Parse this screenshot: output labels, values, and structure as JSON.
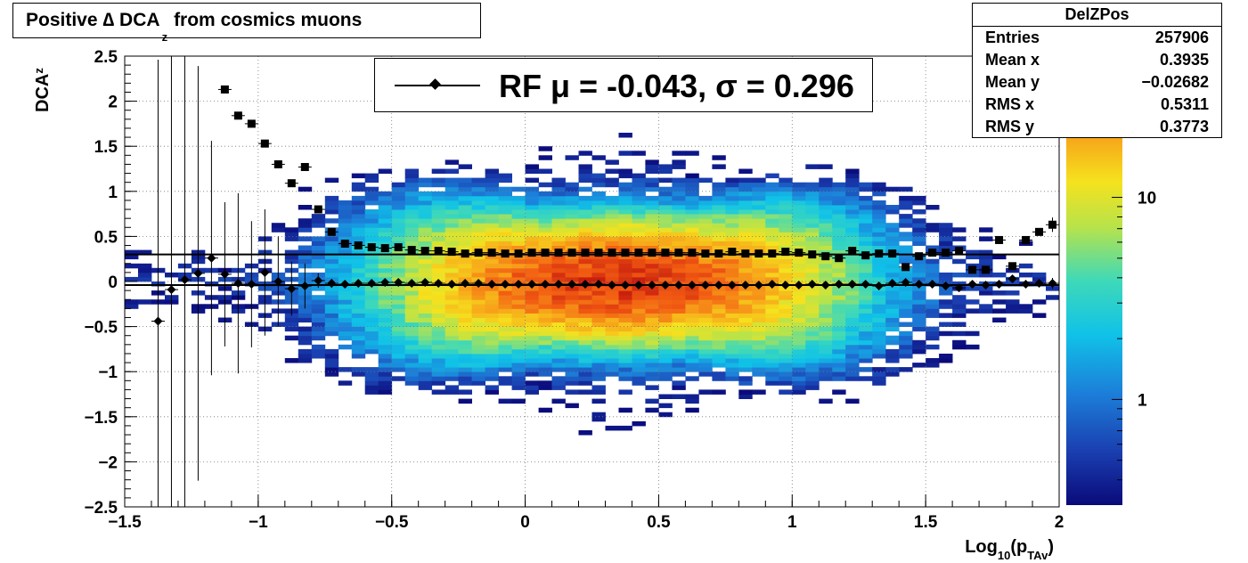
{
  "title": {
    "pre": "Positive ∆ DCA",
    "sub": "z",
    "post": "from cosmics muons"
  },
  "stats_box": {
    "name": "DelZPos",
    "rows": [
      {
        "key": "Entries",
        "value": "257906"
      },
      {
        "key": "Mean x",
        "value": "0.3935"
      },
      {
        "key": "Mean y",
        "value": "−0.02682"
      },
      {
        "key": "RMS x",
        "value": "0.5311"
      },
      {
        "key": "RMS y",
        "value": "0.3773"
      }
    ]
  },
  "legend": {
    "label": "RF μ = -0.043, σ =   0.296"
  },
  "colors": {
    "mean_markers": "#000000",
    "sigma_markers": "#000000"
  },
  "chart_data": {
    "type": "heatmap",
    "xlabel": {
      "pre": "Log",
      "sub1": "10",
      "mid": "(p",
      "sub2": "TAv",
      "post": ")"
    },
    "ylabel": {
      "pre": "DCA",
      "sub": "z"
    },
    "xlim": [
      -1.5,
      2
    ],
    "ylim": [
      -2.5,
      2.5
    ],
    "x_ticks": [
      {
        "v": -1.5,
        "l": "−1.5"
      },
      {
        "v": -1,
        "l": "−1"
      },
      {
        "v": -0.5,
        "l": "−0.5"
      },
      {
        "v": 0,
        "l": "0"
      },
      {
        "v": 0.5,
        "l": "0.5"
      },
      {
        "v": 1,
        "l": "1"
      },
      {
        "v": 1.5,
        "l": "1.5"
      },
      {
        "v": 2,
        "l": "2"
      }
    ],
    "y_ticks": [
      {
        "v": -2.5,
        "l": "−2.5"
      },
      {
        "v": -2,
        "l": "−2"
      },
      {
        "v": -1.5,
        "l": "−1.5"
      },
      {
        "v": -1,
        "l": "−1"
      },
      {
        "v": -0.5,
        "l": "−0.5"
      },
      {
        "v": 0,
        "l": "0"
      },
      {
        "v": 0.5,
        "l": "0.5"
      },
      {
        "v": 1,
        "l": "1"
      },
      {
        "v": 1.5,
        "l": "1.5"
      },
      {
        "v": 2,
        "l": "2"
      },
      {
        "v": 2.5,
        "l": "2.5"
      }
    ],
    "grid": true,
    "colorbar": {
      "scale": "log",
      "range": [
        0.3,
        50
      ],
      "tick_labels": [
        {
          "v": 1,
          "l": "1"
        },
        {
          "v": 10,
          "l": "10"
        }
      ]
    },
    "fit_lines": {
      "mean": -0.04,
      "sigma": 0.3
    },
    "series": [
      {
        "kind": "mean",
        "marker": "diamond",
        "points": [
          {
            "x": -1.375,
            "y": -0.44,
            "e": 2.9
          },
          {
            "x": -1.325,
            "y": -0.09,
            "e": 2.8
          },
          {
            "x": -1.275,
            "y": 0.02,
            "e": 2.6
          },
          {
            "x": -1.225,
            "y": 0.09,
            "e": 2.3
          },
          {
            "x": -1.175,
            "y": 0.26,
            "e": 1.3
          },
          {
            "x": -1.125,
            "y": 0.08,
            "e": 0.8
          },
          {
            "x": -1.075,
            "y": -0.02,
            "e": 1.0
          },
          {
            "x": -1.025,
            "y": -0.03,
            "e": 0.7
          },
          {
            "x": -0.975,
            "y": 0.1,
            "e": 0.7
          },
          {
            "x": -0.925,
            "y": 0.0,
            "e": 0.5
          },
          {
            "x": -0.875,
            "y": -0.08,
            "e": 0.3
          },
          {
            "x": -0.825,
            "y": -0.05,
            "e": 0.25
          },
          {
            "x": -0.775,
            "y": 0.01,
            "e": 0.08
          },
          {
            "x": -0.725,
            "y": -0.02,
            "e": 0.05
          },
          {
            "x": -0.675,
            "y": -0.03,
            "e": 0.03
          },
          {
            "x": -0.625,
            "y": -0.02,
            "e": 0.02
          },
          {
            "x": -0.575,
            "y": -0.02,
            "e": 0.0
          },
          {
            "x": -0.525,
            "y": -0.01,
            "e": 0.0
          },
          {
            "x": -0.475,
            "y": -0.01,
            "e": 0.0
          },
          {
            "x": -0.425,
            "y": -0.02,
            "e": 0.0
          },
          {
            "x": -0.375,
            "y": -0.01,
            "e": 0.0
          },
          {
            "x": -0.325,
            "y": -0.02,
            "e": 0.0
          },
          {
            "x": -0.275,
            "y": -0.03,
            "e": 0.0
          },
          {
            "x": -0.225,
            "y": -0.02,
            "e": 0.0
          },
          {
            "x": -0.175,
            "y": -0.02,
            "e": 0.0
          },
          {
            "x": -0.125,
            "y": -0.03,
            "e": 0.0
          },
          {
            "x": -0.075,
            "y": -0.03,
            "e": 0.0
          },
          {
            "x": -0.025,
            "y": -0.03,
            "e": 0.0
          },
          {
            "x": 0.025,
            "y": -0.03,
            "e": 0.0
          },
          {
            "x": 0.075,
            "y": -0.03,
            "e": 0.0
          },
          {
            "x": 0.125,
            "y": -0.03,
            "e": 0.0
          },
          {
            "x": 0.175,
            "y": -0.03,
            "e": 0.0
          },
          {
            "x": 0.225,
            "y": -0.03,
            "e": 0.0
          },
          {
            "x": 0.275,
            "y": -0.03,
            "e": 0.0
          },
          {
            "x": 0.325,
            "y": -0.04,
            "e": 0.0
          },
          {
            "x": 0.375,
            "y": -0.04,
            "e": 0.0
          },
          {
            "x": 0.425,
            "y": -0.04,
            "e": 0.0
          },
          {
            "x": 0.475,
            "y": -0.04,
            "e": 0.0
          },
          {
            "x": 0.525,
            "y": -0.04,
            "e": 0.0
          },
          {
            "x": 0.575,
            "y": -0.04,
            "e": 0.0
          },
          {
            "x": 0.625,
            "y": -0.04,
            "e": 0.0
          },
          {
            "x": 0.675,
            "y": -0.04,
            "e": 0.0
          },
          {
            "x": 0.725,
            "y": -0.04,
            "e": 0.0
          },
          {
            "x": 0.775,
            "y": -0.04,
            "e": 0.0
          },
          {
            "x": 0.825,
            "y": -0.04,
            "e": 0.0
          },
          {
            "x": 0.875,
            "y": -0.04,
            "e": 0.0
          },
          {
            "x": 0.925,
            "y": -0.03,
            "e": 0.0
          },
          {
            "x": 0.975,
            "y": -0.04,
            "e": 0.0
          },
          {
            "x": 1.025,
            "y": -0.04,
            "e": 0.0
          },
          {
            "x": 1.075,
            "y": -0.03,
            "e": 0.02
          },
          {
            "x": 1.125,
            "y": -0.04,
            "e": 0.02
          },
          {
            "x": 1.175,
            "y": -0.03,
            "e": 0.02
          },
          {
            "x": 1.225,
            "y": -0.03,
            "e": 0.02
          },
          {
            "x": 1.275,
            "y": -0.03,
            "e": 0.02
          },
          {
            "x": 1.325,
            "y": -0.05,
            "e": 0.02
          },
          {
            "x": 1.375,
            "y": -0.02,
            "e": 0.02
          },
          {
            "x": 1.425,
            "y": -0.01,
            "e": 0.03
          },
          {
            "x": 1.475,
            "y": -0.03,
            "e": 0.03
          },
          {
            "x": 1.525,
            "y": -0.03,
            "e": 0.03
          },
          {
            "x": 1.575,
            "y": -0.05,
            "e": 0.03
          },
          {
            "x": 1.625,
            "y": -0.07,
            "e": 0.03
          },
          {
            "x": 1.675,
            "y": -0.03,
            "e": 0.03
          },
          {
            "x": 1.725,
            "y": -0.04,
            "e": 0.03
          },
          {
            "x": 1.775,
            "y": -0.03,
            "e": 0.03
          },
          {
            "x": 1.825,
            "y": 0.03,
            "e": 0.03
          },
          {
            "x": 1.875,
            "y": -0.03,
            "e": 0.03
          },
          {
            "x": 1.925,
            "y": -0.02,
            "e": 0.03
          },
          {
            "x": 1.975,
            "y": -0.02,
            "e": 0.06
          }
        ]
      },
      {
        "kind": "sigma",
        "marker": "square",
        "points": [
          {
            "x": -1.125,
            "y": 2.13,
            "e": 0.0
          },
          {
            "x": -1.075,
            "y": 1.84,
            "e": 0.0
          },
          {
            "x": -1.025,
            "y": 1.75,
            "e": 0.0
          },
          {
            "x": -0.975,
            "y": 1.53,
            "e": 0.0
          },
          {
            "x": -0.925,
            "y": 1.3,
            "e": 0.0
          },
          {
            "x": -0.875,
            "y": 1.09,
            "e": 0.0
          },
          {
            "x": -0.825,
            "y": 1.27,
            "e": 0.0
          },
          {
            "x": -0.775,
            "y": 0.8,
            "e": 0.0
          },
          {
            "x": -0.725,
            "y": 0.55,
            "e": 0.0
          },
          {
            "x": -0.675,
            "y": 0.42,
            "e": 0.0
          },
          {
            "x": -0.625,
            "y": 0.4,
            "e": 0.0
          },
          {
            "x": -0.575,
            "y": 0.38,
            "e": 0.0
          },
          {
            "x": -0.525,
            "y": 0.37,
            "e": 0.0
          },
          {
            "x": -0.475,
            "y": 0.38,
            "e": 0.0
          },
          {
            "x": -0.425,
            "y": 0.35,
            "e": 0.0
          },
          {
            "x": -0.375,
            "y": 0.34,
            "e": 0.0
          },
          {
            "x": -0.325,
            "y": 0.34,
            "e": 0.0
          },
          {
            "x": -0.275,
            "y": 0.33,
            "e": 0.0
          },
          {
            "x": -0.225,
            "y": 0.31,
            "e": 0.0
          },
          {
            "x": -0.175,
            "y": 0.32,
            "e": 0.0
          },
          {
            "x": -0.125,
            "y": 0.32,
            "e": 0.0
          },
          {
            "x": -0.075,
            "y": 0.31,
            "e": 0.0
          },
          {
            "x": -0.025,
            "y": 0.31,
            "e": 0.0
          },
          {
            "x": 0.025,
            "y": 0.32,
            "e": 0.0
          },
          {
            "x": 0.075,
            "y": 0.32,
            "e": 0.0
          },
          {
            "x": 0.125,
            "y": 0.32,
            "e": 0.0
          },
          {
            "x": 0.175,
            "y": 0.32,
            "e": 0.0
          },
          {
            "x": 0.225,
            "y": 0.32,
            "e": 0.0
          },
          {
            "x": 0.275,
            "y": 0.32,
            "e": 0.0
          },
          {
            "x": 0.325,
            "y": 0.32,
            "e": 0.0
          },
          {
            "x": 0.375,
            "y": 0.32,
            "e": 0.0
          },
          {
            "x": 0.425,
            "y": 0.32,
            "e": 0.0
          },
          {
            "x": 0.475,
            "y": 0.32,
            "e": 0.0
          },
          {
            "x": 0.525,
            "y": 0.32,
            "e": 0.0
          },
          {
            "x": 0.575,
            "y": 0.32,
            "e": 0.0
          },
          {
            "x": 0.625,
            "y": 0.32,
            "e": 0.0
          },
          {
            "x": 0.675,
            "y": 0.31,
            "e": 0.0
          },
          {
            "x": 0.725,
            "y": 0.31,
            "e": 0.0
          },
          {
            "x": 0.775,
            "y": 0.33,
            "e": 0.0
          },
          {
            "x": 0.825,
            "y": 0.31,
            "e": 0.0
          },
          {
            "x": 0.875,
            "y": 0.31,
            "e": 0.0
          },
          {
            "x": 0.925,
            "y": 0.31,
            "e": 0.0
          },
          {
            "x": 0.975,
            "y": 0.33,
            "e": 0.0
          },
          {
            "x": 1.025,
            "y": 0.32,
            "e": 0.0
          },
          {
            "x": 1.075,
            "y": 0.3,
            "e": 0.0
          },
          {
            "x": 1.125,
            "y": 0.28,
            "e": 0.0
          },
          {
            "x": 1.175,
            "y": 0.26,
            "e": 0.0
          },
          {
            "x": 1.225,
            "y": 0.34,
            "e": 0.0
          },
          {
            "x": 1.275,
            "y": 0.29,
            "e": 0.0
          },
          {
            "x": 1.325,
            "y": 0.31,
            "e": 0.0
          },
          {
            "x": 1.375,
            "y": 0.31,
            "e": 0.0
          },
          {
            "x": 1.425,
            "y": 0.16,
            "e": 0.0
          },
          {
            "x": 1.475,
            "y": 0.28,
            "e": 0.0
          },
          {
            "x": 1.525,
            "y": 0.32,
            "e": 0.0
          },
          {
            "x": 1.575,
            "y": 0.32,
            "e": 0.0
          },
          {
            "x": 1.625,
            "y": 0.34,
            "e": 0.0
          },
          {
            "x": 1.675,
            "y": 0.13,
            "e": 0.0
          },
          {
            "x": 1.725,
            "y": 0.13,
            "e": 0.0
          },
          {
            "x": 1.775,
            "y": 0.46,
            "e": 0.0
          },
          {
            "x": 1.825,
            "y": 0.17,
            "e": 0.0
          },
          {
            "x": 1.875,
            "y": 0.46,
            "e": 0.0
          },
          {
            "x": 1.925,
            "y": 0.55,
            "e": 0.0
          },
          {
            "x": 1.975,
            "y": 0.63,
            "e": 0.08
          }
        ]
      }
    ]
  }
}
